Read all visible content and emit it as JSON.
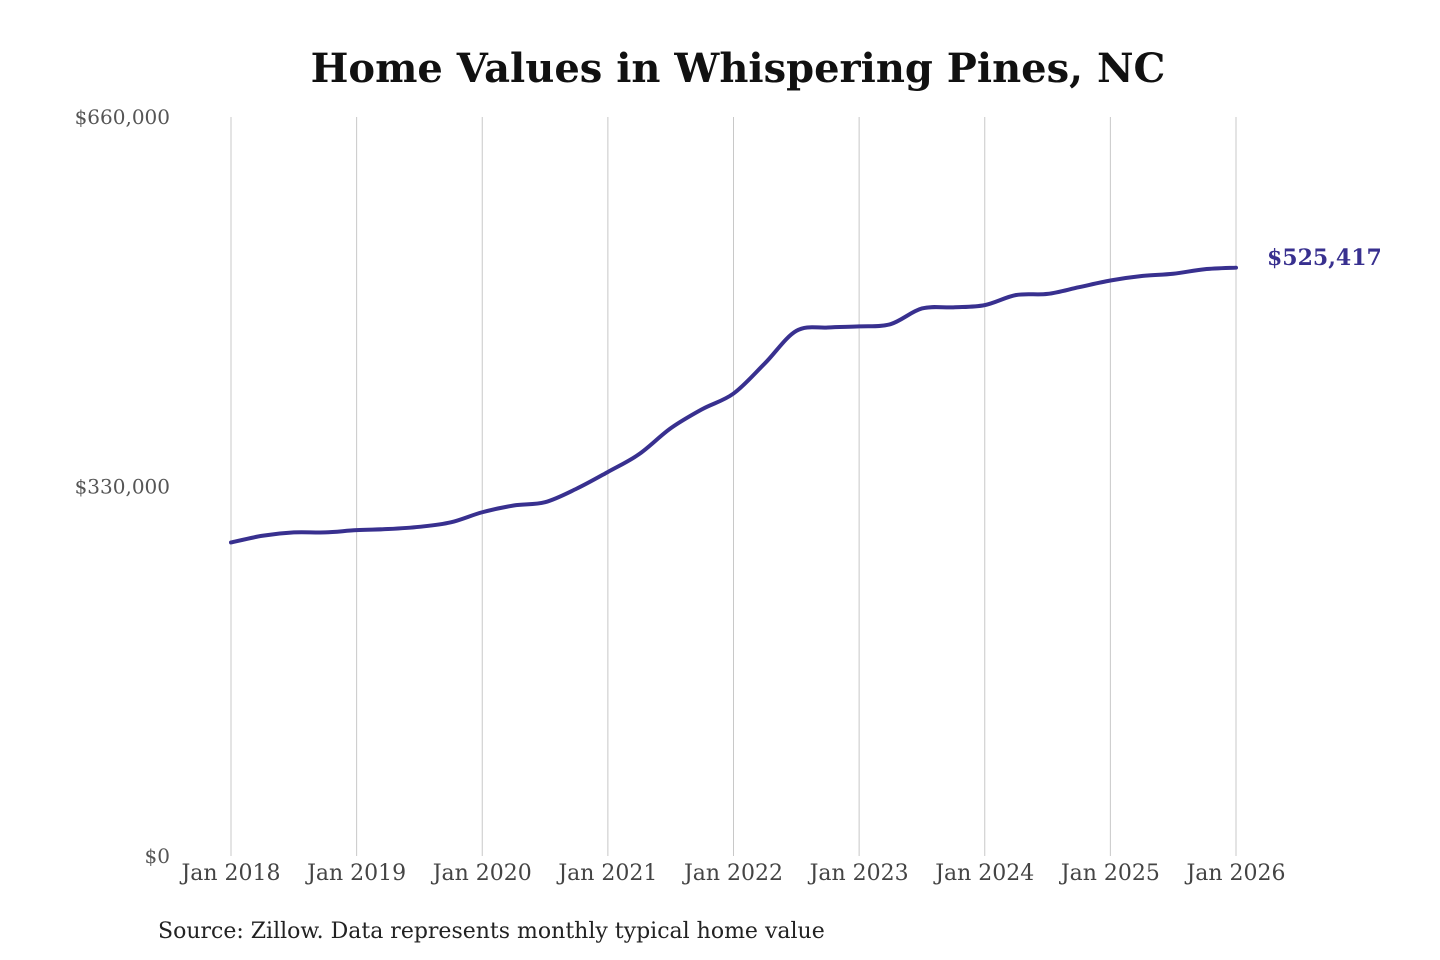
{
  "chart_data": {
    "type": "line",
    "title": "Home Values in Whispering Pines, NC",
    "xlabel": "",
    "ylabel": "",
    "x_range": [
      "2018-01",
      "2026-01"
    ],
    "ylim": [
      0,
      660000
    ],
    "y_ticks": [
      {
        "value": 0,
        "label": "$0"
      },
      {
        "value": 330000,
        "label": "$330,000"
      },
      {
        "value": 660000,
        "label": "$660,000"
      }
    ],
    "x_ticks": [
      {
        "date": "2018-01",
        "label": "Jan 2018"
      },
      {
        "date": "2019-01",
        "label": "Jan 2019"
      },
      {
        "date": "2020-01",
        "label": "Jan 2020"
      },
      {
        "date": "2021-01",
        "label": "Jan 2021"
      },
      {
        "date": "2022-01",
        "label": "Jan 2022"
      },
      {
        "date": "2023-01",
        "label": "Jan 2023"
      },
      {
        "date": "2024-01",
        "label": "Jan 2024"
      },
      {
        "date": "2025-01",
        "label": "Jan 2025"
      },
      {
        "date": "2026-01",
        "label": "Jan 2026"
      }
    ],
    "grid": "vertical",
    "line_color": "#38308f",
    "series": [
      {
        "points": [
          {
            "x": "2018-01",
            "y": 280000
          },
          {
            "x": "2018-04",
            "y": 286000
          },
          {
            "x": "2018-07",
            "y": 289000
          },
          {
            "x": "2018-10",
            "y": 289000
          },
          {
            "x": "2019-01",
            "y": 291000
          },
          {
            "x": "2019-04",
            "y": 292000
          },
          {
            "x": "2019-07",
            "y": 294000
          },
          {
            "x": "2019-10",
            "y": 298000
          },
          {
            "x": "2020-01",
            "y": 307000
          },
          {
            "x": "2020-04",
            "y": 313000
          },
          {
            "x": "2020-07",
            "y": 316000
          },
          {
            "x": "2020-10",
            "y": 328000
          },
          {
            "x": "2021-01",
            "y": 343000
          },
          {
            "x": "2021-04",
            "y": 359000
          },
          {
            "x": "2021-07",
            "y": 382000
          },
          {
            "x": "2021-10",
            "y": 399000
          },
          {
            "x": "2022-01",
            "y": 413000
          },
          {
            "x": "2022-04",
            "y": 440000
          },
          {
            "x": "2022-07",
            "y": 469000
          },
          {
            "x": "2022-10",
            "y": 472000
          },
          {
            "x": "2023-01",
            "y": 473000
          },
          {
            "x": "2023-04",
            "y": 475000
          },
          {
            "x": "2023-07",
            "y": 489000
          },
          {
            "x": "2023-10",
            "y": 490000
          },
          {
            "x": "2024-01",
            "y": 492000
          },
          {
            "x": "2024-04",
            "y": 501000
          },
          {
            "x": "2024-07",
            "y": 502000
          },
          {
            "x": "2024-10",
            "y": 508000
          },
          {
            "x": "2025-01",
            "y": 514000
          },
          {
            "x": "2025-04",
            "y": 518000
          },
          {
            "x": "2025-07",
            "y": 520000
          },
          {
            "x": "2025-10",
            "y": 524000
          },
          {
            "x": "2026-01",
            "y": 525417
          }
        ]
      }
    ],
    "end_label": "$525,417",
    "source": "Source: Zillow. Data represents monthly typical home value"
  }
}
